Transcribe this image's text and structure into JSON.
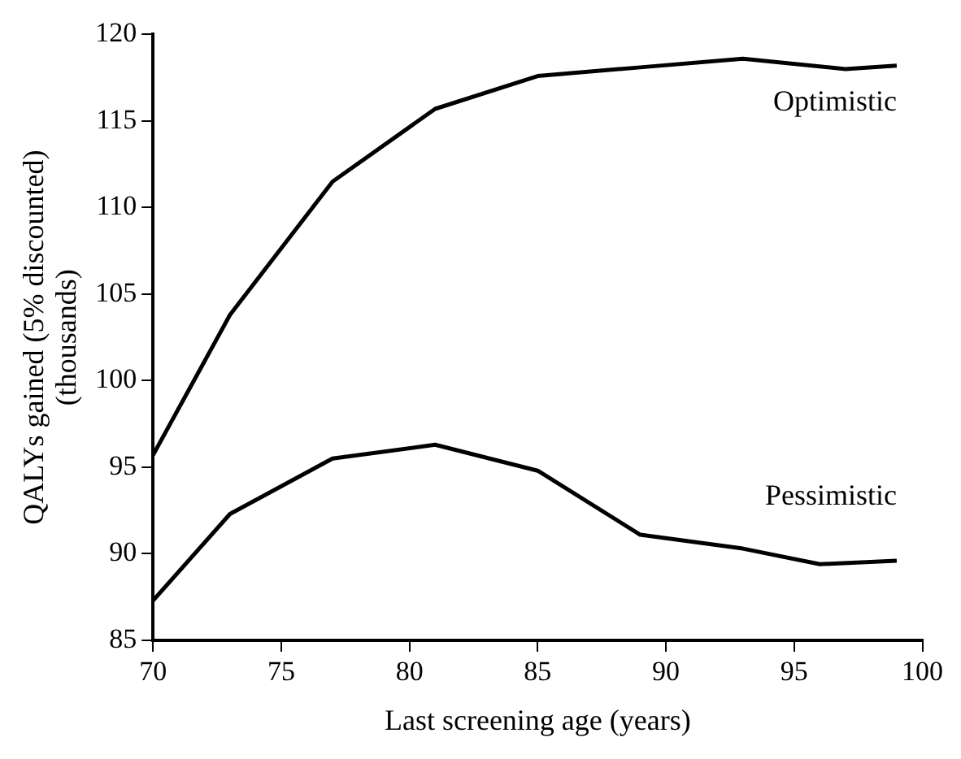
{
  "chart_data": {
    "type": "line",
    "xlabel": "Last screening age (years)",
    "ylabel": "QALYs gained (5% discounted)\n(thousands)",
    "xlim": [
      70,
      100
    ],
    "xticks": [
      70,
      75,
      80,
      85,
      90,
      95,
      100
    ],
    "ylim": [
      85,
      120
    ],
    "yticks": [
      85,
      90,
      95,
      100,
      105,
      110,
      115,
      120
    ],
    "grid": false,
    "legend": false,
    "marker": "none",
    "line_style": "solid",
    "series": [
      {
        "name": "Optimistic",
        "color": "#000000",
        "x": [
          70,
          73,
          77,
          81,
          85,
          89,
          93,
          97,
          99
        ],
        "values": [
          95.7,
          103.8,
          111.5,
          115.7,
          117.6,
          118.1,
          118.6,
          118.0,
          118.2
        ]
      },
      {
        "name": "Pessimistic",
        "color": "#000000",
        "x": [
          70,
          73,
          77,
          81,
          85,
          89,
          93,
          96,
          99
        ],
        "values": [
          87.3,
          92.3,
          95.5,
          96.3,
          94.8,
          91.1,
          90.3,
          89.4,
          89.6
        ]
      }
    ]
  }
}
